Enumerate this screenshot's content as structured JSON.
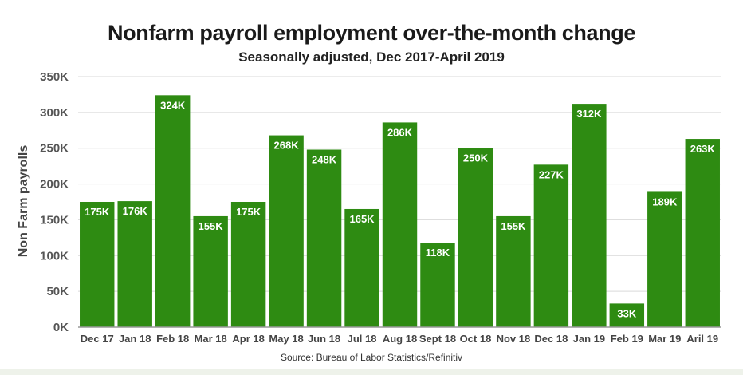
{
  "colors": {
    "bar": "#2e8b12",
    "grid": "#d9d9d9",
    "axis": "#999999"
  },
  "chart_data": {
    "type": "bar",
    "title": "Nonfarm payroll employment over-the-month change",
    "subtitle": "Seasonally adjusted, Dec 2017-April 2019",
    "xlabel": "",
    "ylabel": "Non Farm payrolls",
    "source": "Source: Bureau of Labor Statistics/Refinitiv",
    "ylim": [
      0,
      350
    ],
    "yticks": [
      0,
      50,
      100,
      150,
      200,
      250,
      300,
      350
    ],
    "ytick_labels": [
      "0K",
      "50K",
      "100K",
      "150K",
      "200K",
      "250K",
      "300K",
      "350K"
    ],
    "grid": true,
    "categories": [
      "Dec 17",
      "Jan 18",
      "Feb 18",
      "Mar 18",
      "Apr 18",
      "May 18",
      "Jun 18",
      "Jul 18",
      "Aug 18",
      "Sept 18",
      "Oct 18",
      "Nov 18",
      "Dec 18",
      "Jan 19",
      "Feb 19",
      "Mar 19",
      "Aril 19"
    ],
    "values": [
      175,
      176,
      324,
      155,
      175,
      268,
      248,
      165,
      286,
      118,
      250,
      155,
      227,
      312,
      33,
      189,
      263
    ],
    "data_labels": [
      "175K",
      "176K",
      "324K",
      "155K",
      "175K",
      "268K",
      "248K",
      "165K",
      "286K",
      "118K",
      "250K",
      "155K",
      "227K",
      "312K",
      "33K",
      "189K",
      "263K"
    ]
  }
}
